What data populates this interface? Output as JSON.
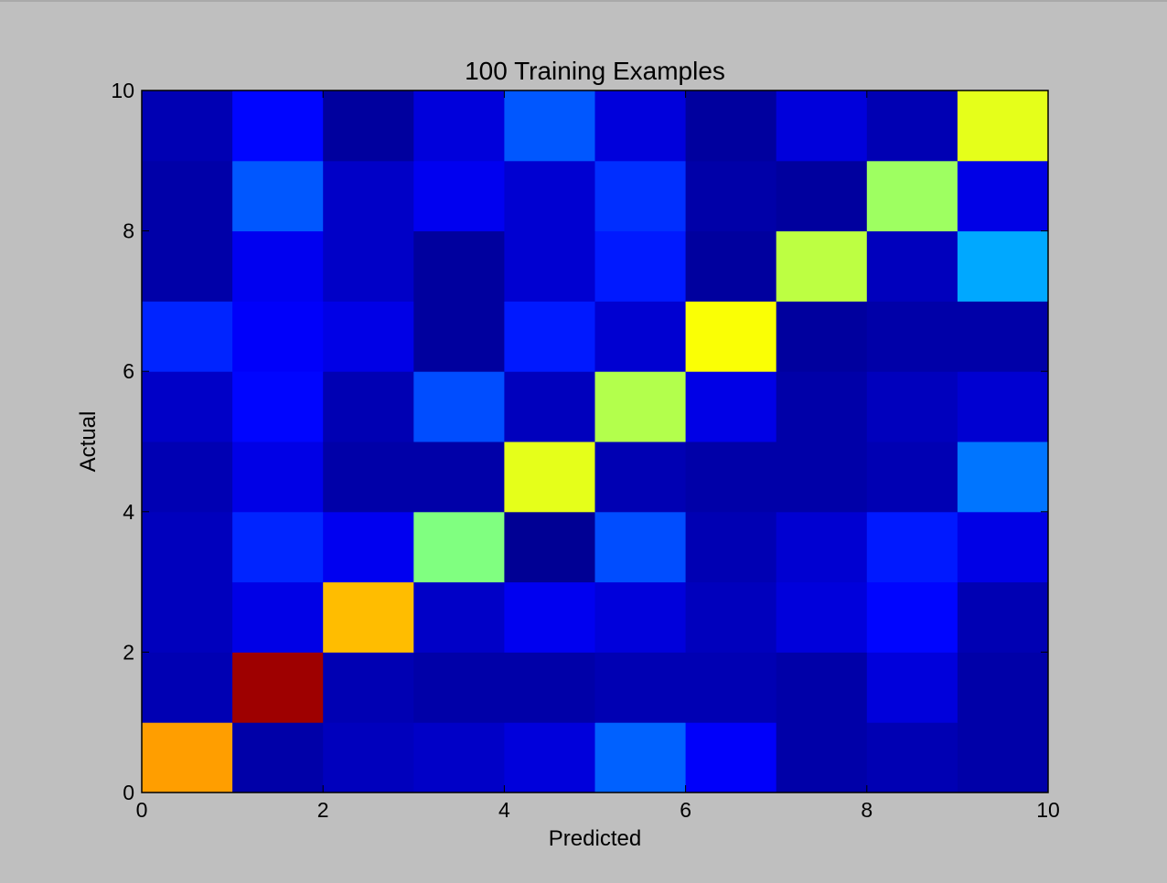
{
  "chart_data": {
    "type": "heatmap",
    "title": "100 Training Examples",
    "xlabel": "Predicted",
    "ylabel": "Actual",
    "xlim": [
      0,
      10
    ],
    "ylim": [
      0,
      10
    ],
    "xticks": [
      "0",
      "2",
      "4",
      "6",
      "8",
      "10"
    ],
    "yticks": [
      "0",
      "2",
      "4",
      "6",
      "8",
      "10"
    ],
    "colormap": "jet",
    "value_range": [
      0,
      1
    ],
    "grid": false,
    "legend": "none",
    "rows_bottom_to_top": [
      [
        0.72,
        0.04,
        0.06,
        0.07,
        0.09,
        0.22,
        0.12,
        0.04,
        0.05,
        0.04
      ],
      [
        0.05,
        0.97,
        0.05,
        0.04,
        0.04,
        0.05,
        0.05,
        0.04,
        0.09,
        0.04
      ],
      [
        0.06,
        0.1,
        0.69,
        0.07,
        0.11,
        0.09,
        0.06,
        0.09,
        0.13,
        0.05
      ],
      [
        0.06,
        0.16,
        0.11,
        0.5,
        0.02,
        0.2,
        0.05,
        0.08,
        0.15,
        0.1
      ],
      [
        0.05,
        0.1,
        0.04,
        0.04,
        0.6,
        0.05,
        0.04,
        0.04,
        0.05,
        0.24
      ],
      [
        0.07,
        0.13,
        0.05,
        0.2,
        0.06,
        0.55,
        0.1,
        0.04,
        0.06,
        0.08
      ],
      [
        0.16,
        0.12,
        0.1,
        0.03,
        0.15,
        0.08,
        0.62,
        0.03,
        0.04,
        0.04
      ],
      [
        0.04,
        0.11,
        0.07,
        0.03,
        0.08,
        0.15,
        0.03,
        0.56,
        0.06,
        0.29
      ],
      [
        0.04,
        0.21,
        0.07,
        0.11,
        0.08,
        0.17,
        0.04,
        0.03,
        0.53,
        0.1
      ],
      [
        0.05,
        0.13,
        0.03,
        0.09,
        0.21,
        0.09,
        0.03,
        0.09,
        0.05,
        0.6
      ]
    ]
  }
}
